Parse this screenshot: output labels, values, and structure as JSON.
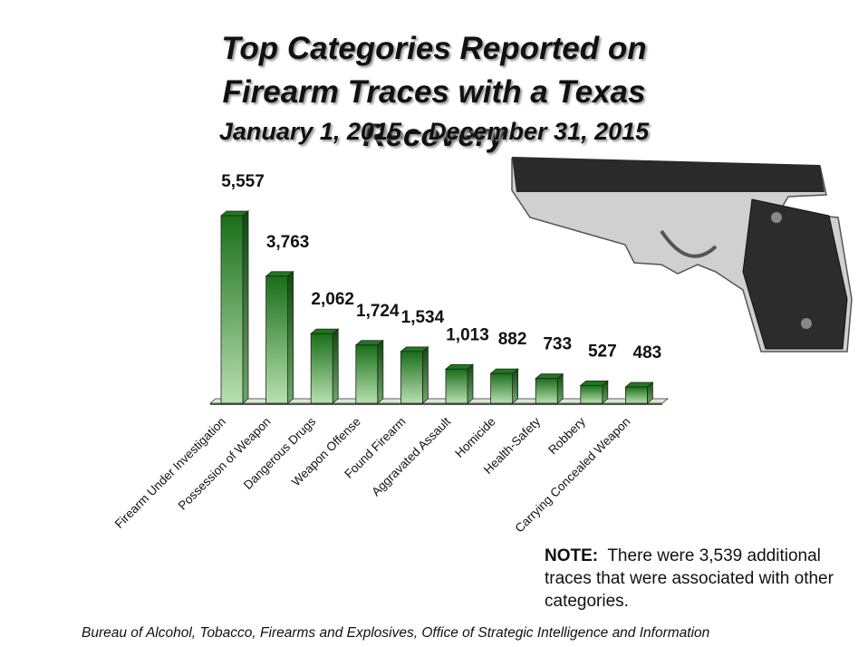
{
  "chart_data": {
    "type": "bar3d",
    "title": "Top Categories Reported on Firearm Traces with a Texas Recovery",
    "subtitle": "January 1, 2015 – December 31, 2015",
    "categories": [
      "Firearm Under Investigation",
      "Possession of Weapon",
      "Dangerous Drugs",
      "Weapon Offense",
      "Found Firearm",
      "Aggravated Assault",
      "Homicide",
      "Health-Safety",
      "Robbery",
      "Carrying Concealed Weapon"
    ],
    "values": [
      5557,
      3763,
      2062,
      1724,
      1534,
      1013,
      882,
      733,
      527,
      483
    ],
    "value_labels": [
      "5,557",
      "3,763",
      "2,062",
      "1,724",
      "1,534",
      "1,013",
      "882",
      "733",
      "527",
      "483"
    ],
    "color": "#1e7a1e",
    "note_label": "NOTE:",
    "note": "There were 3,539 additional traces that were associated with other categories.",
    "source": "Bureau of Alcohol, Tobacco, Firearms and Explosives, Office of Strategic Intelligence and Information"
  }
}
